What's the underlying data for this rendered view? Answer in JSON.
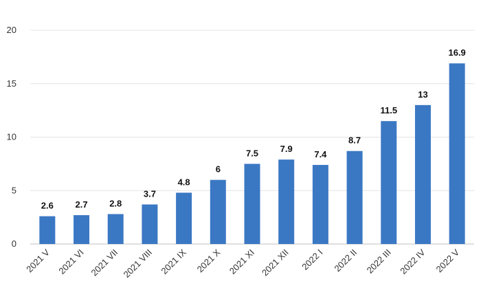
{
  "chart_data": {
    "type": "bar",
    "categories": [
      "2021 V",
      "2021 VI",
      "2021 VII",
      "2021 VIII",
      "2021 IX",
      "2021 X",
      "2021 XI",
      "2021 XII",
      "2022 I",
      "2022 II",
      "2022 III",
      "2022 IV",
      "2022 V"
    ],
    "values": [
      2.6,
      2.7,
      2.8,
      3.7,
      4.8,
      6,
      7.5,
      7.9,
      7.4,
      8.7,
      11.5,
      13,
      16.9
    ],
    "data_labels": [
      "2.6",
      "2.7",
      "2.8",
      "3.7",
      "4.8",
      "6",
      "7.5",
      "7.9",
      "7.4",
      "8.7",
      "11.5",
      "13",
      "16.9"
    ],
    "yticks": [
      0,
      5,
      10,
      15,
      20
    ],
    "ylim": [
      0,
      20
    ],
    "grid": true,
    "legend": "none",
    "bar_color": "#3b78c4"
  }
}
